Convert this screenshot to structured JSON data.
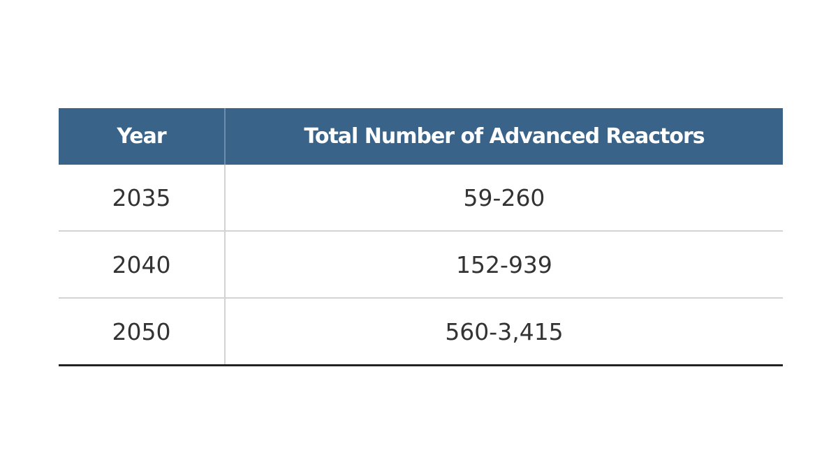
{
  "table": {
    "header": [
      "Year",
      "Total Number of Advanced Reactors"
    ],
    "rows": [
      [
        "2035",
        "59-260"
      ],
      [
        "2040",
        "152-939"
      ],
      [
        "2050",
        "560-3,415"
      ]
    ]
  }
}
